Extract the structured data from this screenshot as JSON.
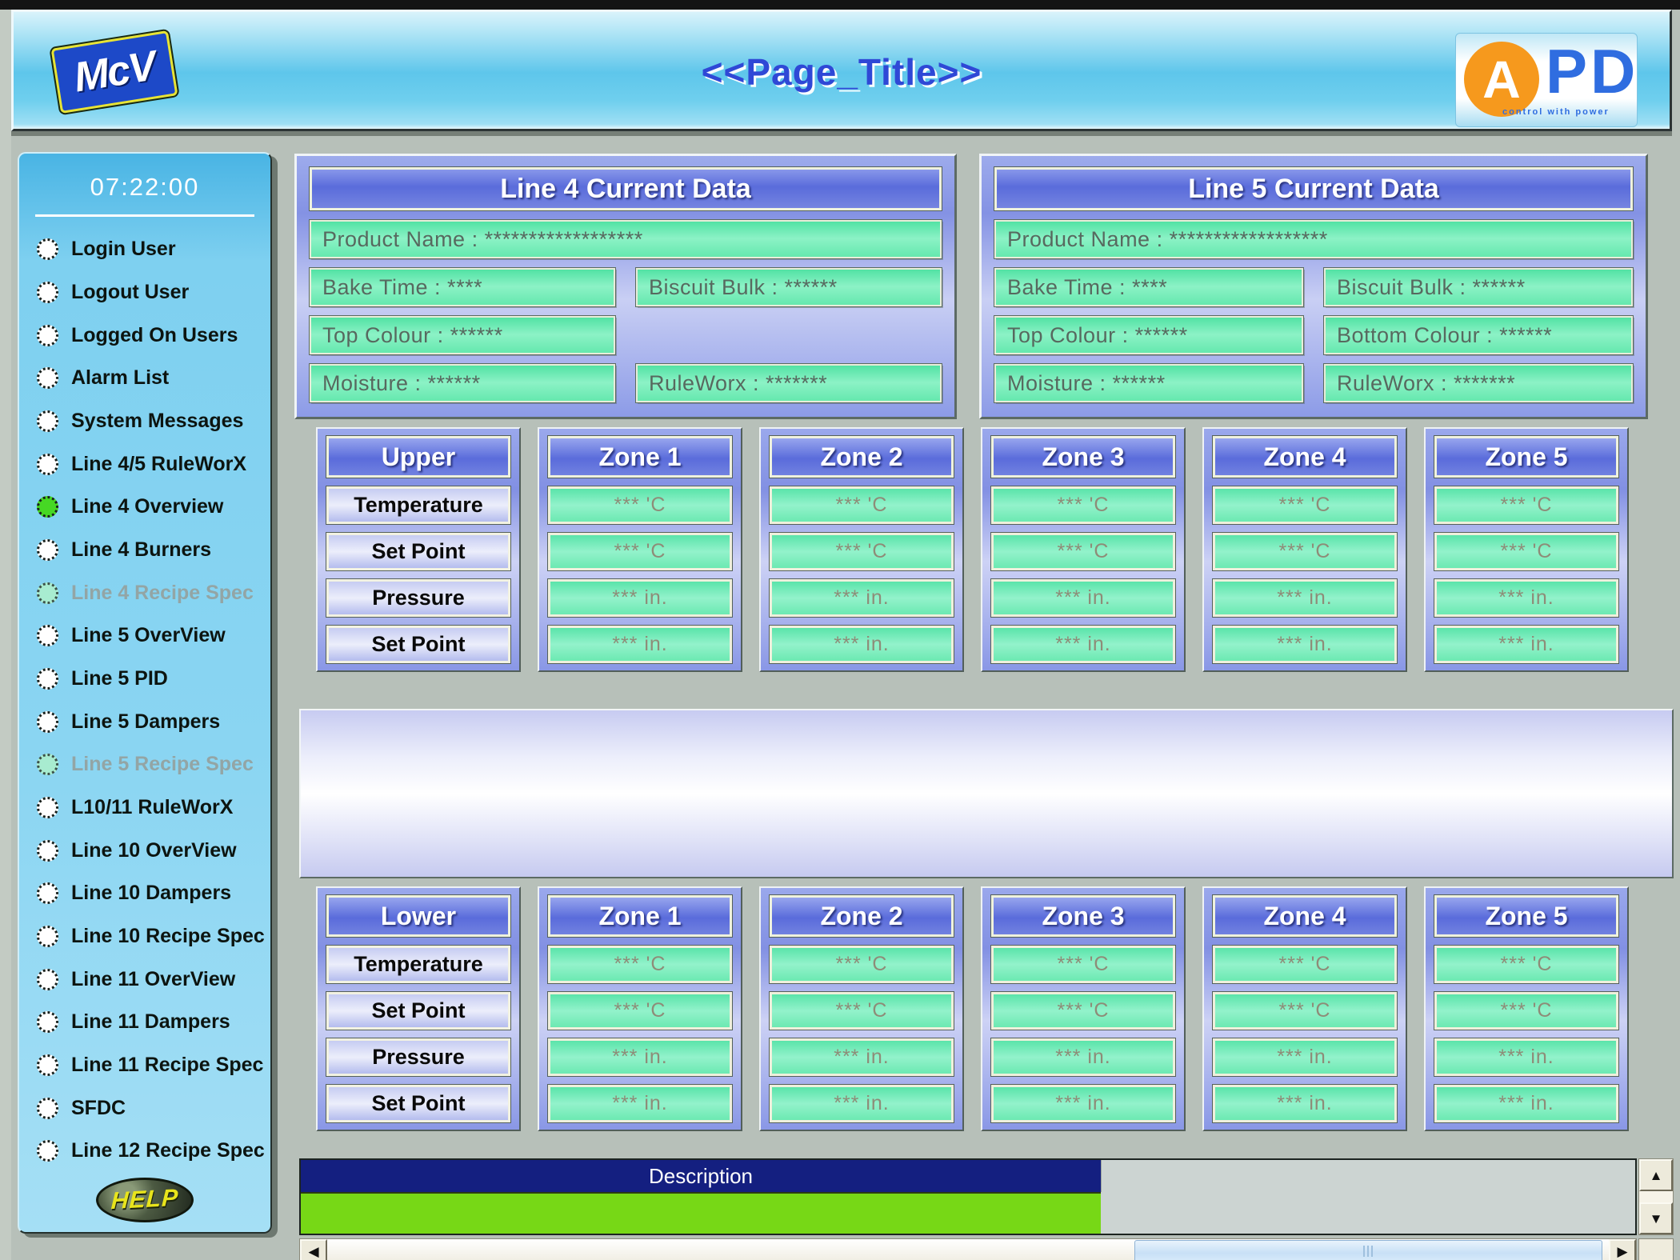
{
  "header": {
    "mcv_logo": "McV",
    "title": "<<Page_Title>>",
    "apd": {
      "a": "A",
      "p": "P",
      "d": "D",
      "tagline": "control with power"
    }
  },
  "sidebar": {
    "time": "07:22:00",
    "help_label": "HELP",
    "items": [
      {
        "label": "Login User",
        "state": "normal"
      },
      {
        "label": "Logout User",
        "state": "normal"
      },
      {
        "label": "Logged On Users",
        "state": "normal"
      },
      {
        "label": "Alarm List",
        "state": "normal"
      },
      {
        "label": "System Messages",
        "state": "normal"
      },
      {
        "label": "Line 4/5 RuleWorX",
        "state": "normal"
      },
      {
        "label": "Line 4 Overview",
        "state": "active"
      },
      {
        "label": "Line 4 Burners",
        "state": "normal"
      },
      {
        "label": "Line 4 Recipe Spec",
        "state": "disabled"
      },
      {
        "label": "Line 5 OverView",
        "state": "normal"
      },
      {
        "label": "Line 5 PID",
        "state": "normal"
      },
      {
        "label": "Line 5 Dampers",
        "state": "normal"
      },
      {
        "label": "Line 5 Recipe Spec",
        "state": "disabled"
      },
      {
        "label": "L10/11 RuleWorX",
        "state": "normal"
      },
      {
        "label": "Line 10 OverView",
        "state": "normal"
      },
      {
        "label": "Line 10 Dampers",
        "state": "normal"
      },
      {
        "label": "Line 10 Recipe Spec",
        "state": "normal"
      },
      {
        "label": "Line 11 OverView",
        "state": "normal"
      },
      {
        "label": "Line 11 Dampers",
        "state": "normal"
      },
      {
        "label": "Line 11 Recipe Spec",
        "state": "normal"
      },
      {
        "label": "SFDC",
        "state": "normal"
      },
      {
        "label": "Line 12 Recipe Spec",
        "state": "normal"
      }
    ]
  },
  "panels": [
    {
      "title": "Line 4 Current Data",
      "product_name": "Product Name : ******************",
      "bake_time": "Bake Time : ****",
      "biscuit_bulk": "Biscuit Bulk : ******",
      "top_colour": "Top Colour : ******",
      "moisture": "Moisture : ******",
      "ruleworx": "RuleWorx : *******"
    },
    {
      "title": "Line 5 Current Data",
      "product_name": "Product Name : ******************",
      "bake_time": "Bake Time : ****",
      "biscuit_bulk": "Biscuit Bulk : ******",
      "top_colour": "Top Colour : ******",
      "bottom_colour": "Bottom Colour : ******",
      "moisture": "Moisture : ******",
      "ruleworx": "RuleWorx : *******"
    }
  ],
  "zone_tables": [
    {
      "section": "Upper",
      "row_labels": [
        "Temperature",
        "Set Point",
        "Pressure",
        "Set Point"
      ],
      "zones": [
        {
          "name": "Zone 1",
          "values": [
            "*** 'C",
            "*** 'C",
            "*** in.",
            "*** in."
          ]
        },
        {
          "name": "Zone 2",
          "values": [
            "*** 'C",
            "*** 'C",
            "*** in.",
            "*** in."
          ]
        },
        {
          "name": "Zone 3",
          "values": [
            "*** 'C",
            "*** 'C",
            "*** in.",
            "*** in."
          ]
        },
        {
          "name": "Zone 4",
          "values": [
            "*** 'C",
            "*** 'C",
            "*** in.",
            "*** in."
          ]
        },
        {
          "name": "Zone 5",
          "values": [
            "*** 'C",
            "*** 'C",
            "*** in.",
            "*** in."
          ]
        }
      ]
    },
    {
      "section": "Lower",
      "row_labels": [
        "Temperature",
        "Set Point",
        "Pressure",
        "Set Point"
      ],
      "zones": [
        {
          "name": "Zone 1",
          "values": [
            "*** 'C",
            "*** 'C",
            "*** in.",
            "*** in."
          ]
        },
        {
          "name": "Zone 2",
          "values": [
            "*** 'C",
            "*** 'C",
            "*** in.",
            "*** in."
          ]
        },
        {
          "name": "Zone 3",
          "values": [
            "*** 'C",
            "*** 'C",
            "*** in.",
            "*** in."
          ]
        },
        {
          "name": "Zone 4",
          "values": [
            "*** 'C",
            "*** 'C",
            "*** in.",
            "*** in."
          ]
        },
        {
          "name": "Zone 5",
          "values": [
            "*** 'C",
            "*** 'C",
            "*** in.",
            "*** in."
          ]
        }
      ]
    }
  ],
  "bottom": {
    "description_header": "Description"
  },
  "icons": {
    "up": "▲",
    "down": "▼",
    "left": "◀",
    "right": "▶"
  },
  "colors": {
    "active_radio_green": "#46d824",
    "selected_row_green": "#77d816",
    "description_bar_blue": "#141f80",
    "value_field_mint": "#6ce9b2",
    "panel_periwinkle": "#8a99e6",
    "header_sky_blue": "#5ec6eb",
    "apd_orange": "#f6991d",
    "apd_blue": "#2f6de0",
    "title_blue": "#2f48d6"
  }
}
